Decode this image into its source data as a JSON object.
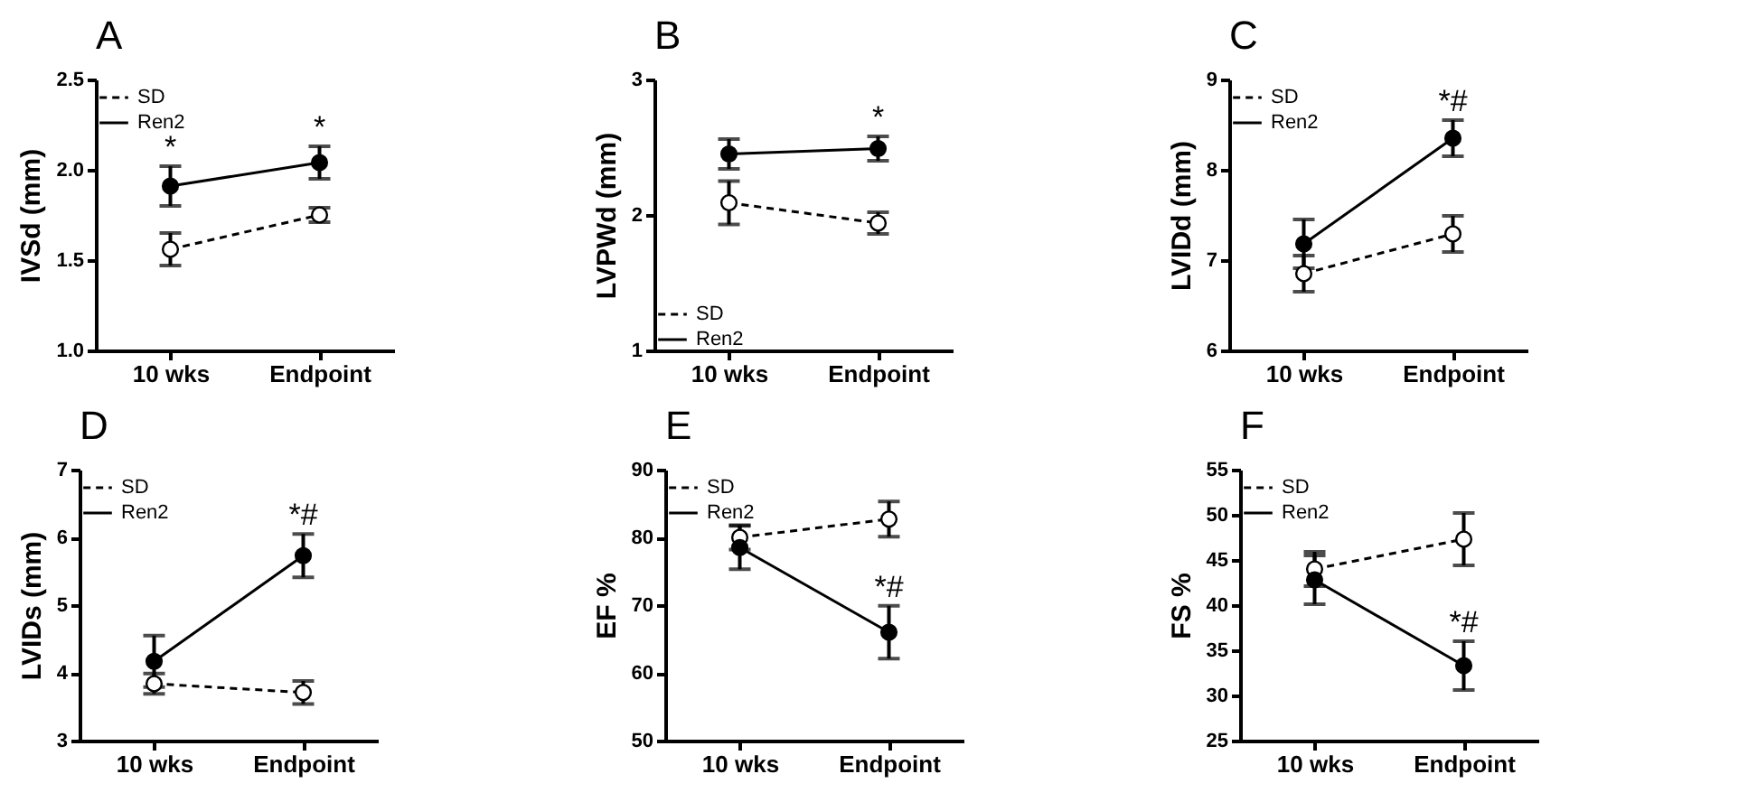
{
  "chart_data": [
    {
      "type": "line",
      "title": "A",
      "ylabel": "IVSd (mm)",
      "categories": [
        "10 wks",
        "Endpoint"
      ],
      "ylim": [
        1.0,
        2.5
      ],
      "yticks": [
        {
          "value": 1,
          "label": "1.0"
        },
        {
          "value": 1.5,
          "label": "1.5"
        },
        {
          "value": 2,
          "label": "2.0"
        },
        {
          "value": 2.5,
          "label": "2.5"
        }
      ],
      "legend": "top left",
      "series": [
        {
          "name": "SD",
          "color": "#000000",
          "marker": "circle",
          "line_style": "dashed",
          "values": [
            1.56,
            1.75
          ],
          "errors": [
            0.09,
            0.04
          ]
        },
        {
          "name": "Ren2",
          "color": "#000000",
          "marker": "circle",
          "line_style": "solid",
          "values": [
            1.91,
            2.04
          ],
          "errors": [
            0.11,
            0.09
          ]
        }
      ],
      "annotations": [
        {
          "text": "*",
          "x": "10 wks",
          "y": 1.91
        },
        {
          "text": "*",
          "x": "Endpoint",
          "y": 2.04
        }
      ]
    },
    {
      "type": "line",
      "title": "B",
      "ylabel": "LVPWd (mm)",
      "categories": [
        "10 wks",
        "Endpoint"
      ],
      "ylim": [
        1,
        3
      ],
      "yticks": [
        1,
        2,
        3
      ],
      "legend": "bottom left",
      "series": [
        {
          "name": "SD",
          "color": "#000000",
          "marker": "circle",
          "line_style": "dashed",
          "values": [
            2.09,
            1.94
          ],
          "errors": [
            0.16,
            0.08
          ]
        },
        {
          "name": "Ren2",
          "color": "#000000",
          "marker": "circle",
          "line_style": "solid",
          "values": [
            2.45,
            2.49
          ],
          "errors": [
            0.11,
            0.09
          ]
        }
      ],
      "annotations": [
        {
          "text": "*",
          "x": "Endpoint",
          "y": 2.49
        }
      ]
    },
    {
      "type": "line",
      "title": "C",
      "ylabel": "LVIDd (mm)",
      "categories": [
        "10 wks",
        "Endpoint"
      ],
      "ylim": [
        6,
        9
      ],
      "yticks": [
        6,
        7,
        8,
        9
      ],
      "legend": "top left",
      "series": [
        {
          "name": "SD",
          "color": "#000000",
          "marker": "circle",
          "line_style": "dashed",
          "values": [
            6.85,
            7.29
          ],
          "errors": [
            0.2,
            0.2
          ]
        },
        {
          "name": "Ren2",
          "color": "#000000",
          "marker": "circle",
          "line_style": "solid",
          "values": [
            7.18,
            8.35
          ],
          "errors": [
            0.27,
            0.2
          ]
        }
      ],
      "annotations": [
        {
          "text": "*#",
          "x": "Endpoint",
          "y": 8.35
        }
      ]
    },
    {
      "type": "line",
      "title": "D",
      "ylabel": "LVIDs (mm)",
      "categories": [
        "10 wks",
        "Endpoint"
      ],
      "ylim": [
        3,
        7
      ],
      "yticks": [
        3,
        4,
        5,
        6,
        7
      ],
      "legend": "top left",
      "series": [
        {
          "name": "SD",
          "color": "#000000",
          "marker": "circle",
          "line_style": "dashed",
          "values": [
            3.84,
            3.71
          ],
          "errors": [
            0.15,
            0.17
          ]
        },
        {
          "name": "Ren2",
          "color": "#000000",
          "marker": "circle",
          "line_style": "solid",
          "values": [
            4.17,
            5.73
          ],
          "errors": [
            0.38,
            0.32
          ]
        }
      ],
      "annotations": [
        {
          "text": "*#",
          "x": "Endpoint",
          "y": 5.73
        }
      ]
    },
    {
      "type": "line",
      "title": "E",
      "ylabel": "EF %",
      "categories": [
        "10 wks",
        "Endpoint"
      ],
      "ylim": [
        50,
        90
      ],
      "yticks": [
        50,
        60,
        70,
        80,
        90
      ],
      "legend": "top left",
      "series": [
        {
          "name": "SD",
          "color": "#000000",
          "marker": "circle",
          "line_style": "dashed",
          "values": [
            80,
            82.7
          ],
          "errors": [
            1.8,
            2.6
          ]
        },
        {
          "name": "Ren2",
          "color": "#000000",
          "marker": "circle",
          "line_style": "solid",
          "values": [
            78.5,
            66
          ],
          "errors": [
            3.2,
            3.9
          ]
        }
      ],
      "annotations": [
        {
          "text": "*#",
          "x": "Endpoint",
          "y": 66
        }
      ]
    },
    {
      "type": "line",
      "title": "F",
      "ylabel": "FS %",
      "categories": [
        "10 wks",
        "Endpoint"
      ],
      "ylim": [
        25,
        55
      ],
      "yticks": [
        25,
        30,
        35,
        40,
        45,
        50,
        55
      ],
      "legend": "top left",
      "series": [
        {
          "name": "SD",
          "color": "#000000",
          "marker": "circle",
          "line_style": "dashed",
          "values": [
            44,
            47.3
          ],
          "errors": [
            1.9,
            2.9
          ]
        },
        {
          "name": "Ren2",
          "color": "#000000",
          "marker": "circle",
          "line_style": "solid",
          "values": [
            42.8,
            33.3
          ],
          "errors": [
            2.7,
            2.7
          ]
        }
      ],
      "annotations": [
        {
          "text": "*#",
          "x": "Endpoint",
          "y": 33.3
        }
      ]
    }
  ]
}
